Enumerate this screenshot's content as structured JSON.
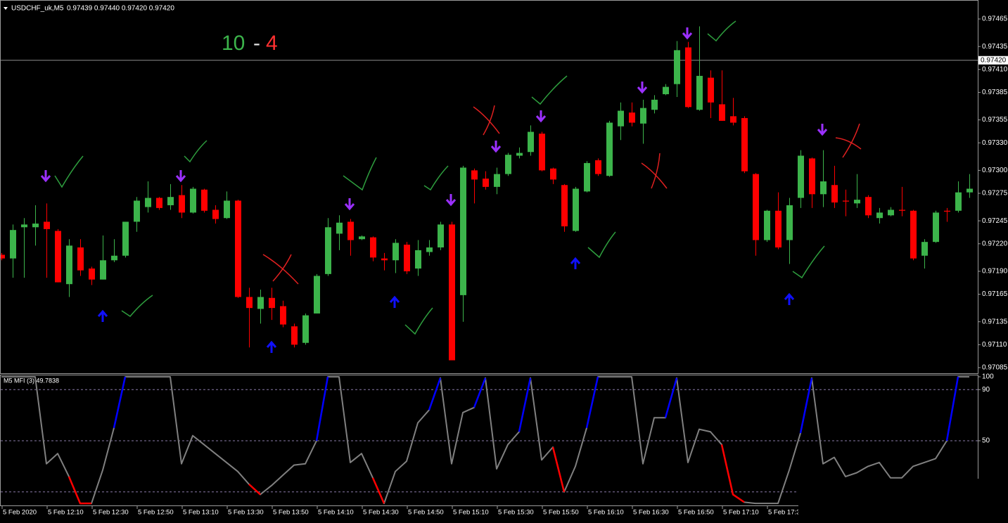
{
  "chart_data": [
    {
      "type": "candlestick",
      "symbol": "USDCHF_uk,M5",
      "quote": "0.97439 0.97440 0.97420 0.97420",
      "score": {
        "wins": "10",
        "separator": "-",
        "losses": "4"
      },
      "up_color": "#3cb44b",
      "down_color": "#ff0000",
      "current_price": {
        "value": 0.9742,
        "label": "0.97420"
      },
      "ylim": [
        0.9708,
        0.97484
      ],
      "yticks": [
        0.97465,
        0.97435,
        {
          "value": 0.9741,
          "label": "0.97410"
        },
        0.97385,
        0.97355,
        {
          "value": 0.9733,
          "label": "0.97330"
        },
        {
          "value": 0.973,
          "label": "0.97300"
        },
        0.97275,
        0.97245,
        {
          "value": 0.9722,
          "label": "0.97220"
        },
        {
          "value": 0.9719,
          "label": "0.97190"
        },
        0.97165,
        0.97135,
        {
          "value": 0.9711,
          "label": "0.97110"
        },
        0.97085
      ],
      "time_labels": [
        "5 Feb 2020",
        "5 Feb 12:10",
        "5 Feb 12:30",
        "5 Feb 12:50",
        "5 Feb 13:10",
        "5 Feb 13:30",
        "5 Feb 13:50",
        "5 Feb 14:10",
        "5 Feb 14:30",
        "5 Feb 14:50",
        "5 Feb 15:10",
        "5 Feb 15:30",
        "5 Feb 15:50",
        "5 Feb 16:10",
        "5 Feb 16:30",
        "5 Feb 16:50",
        "5 Feb 17:10",
        "5 Feb 17:3"
      ],
      "ohlc": [
        [
          0.97208,
          0.9721,
          0.97202,
          0.97204
        ],
        [
          0.97204,
          0.97241,
          0.97183,
          0.97235
        ],
        [
          0.97238,
          0.97248,
          0.97183,
          0.97241
        ],
        [
          0.97238,
          0.97262,
          0.97218,
          0.97242
        ],
        [
          0.97244,
          0.97264,
          0.97183,
          0.97236
        ],
        [
          0.97234,
          0.97236,
          0.97178,
          0.97178
        ],
        [
          0.97176,
          0.97225,
          0.97162,
          0.97218
        ],
        [
          0.97216,
          0.97225,
          0.97185,
          0.97191
        ],
        [
          0.97193,
          0.97195,
          0.97175,
          0.97181
        ],
        [
          0.97181,
          0.97229,
          0.97181,
          0.97202
        ],
        [
          0.97202,
          0.97225,
          0.972,
          0.97207
        ],
        [
          0.97207,
          0.97244,
          0.97205,
          0.97244
        ],
        [
          0.97244,
          0.97271,
          0.97233,
          0.97267
        ],
        [
          0.9726,
          0.97288,
          0.97254,
          0.9727
        ],
        [
          0.9727,
          0.97271,
          0.97257,
          0.97259
        ],
        [
          0.97262,
          0.97285,
          0.97257,
          0.97271
        ],
        [
          0.97273,
          0.97284,
          0.97248,
          0.97254
        ],
        [
          0.97254,
          0.97282,
          0.97253,
          0.9728
        ],
        [
          0.97279,
          0.9728,
          0.97254,
          0.97256
        ],
        [
          0.97257,
          0.97262,
          0.97242,
          0.97247
        ],
        [
          0.97248,
          0.97277,
          0.97247,
          0.97267
        ],
        [
          0.97267,
          0.97268,
          0.97161,
          0.97162
        ],
        [
          0.97162,
          0.97172,
          0.97107,
          0.9715
        ],
        [
          0.97149,
          0.9717,
          0.97133,
          0.97162
        ],
        [
          0.97161,
          0.97172,
          0.97137,
          0.9715
        ],
        [
          0.97152,
          0.97158,
          0.97129,
          0.97132
        ],
        [
          0.9713,
          0.97133,
          0.97107,
          0.9711
        ],
        [
          0.97112,
          0.97144,
          0.9711,
          0.97142
        ],
        [
          0.97144,
          0.97187,
          0.97144,
          0.97185
        ],
        [
          0.97187,
          0.97248,
          0.97185,
          0.97238
        ],
        [
          0.97231,
          0.97251,
          0.97213,
          0.97243
        ],
        [
          0.97244,
          0.97247,
          0.97207,
          0.97224
        ],
        [
          0.97225,
          0.97229,
          0.97224,
          0.97228
        ],
        [
          0.97227,
          0.97228,
          0.97201,
          0.97205
        ],
        [
          0.97204,
          0.9721,
          0.97191,
          0.97202
        ],
        [
          0.97202,
          0.97225,
          0.97188,
          0.97221
        ],
        [
          0.97219,
          0.97222,
          0.97187,
          0.9719
        ],
        [
          0.97193,
          0.97224,
          0.97185,
          0.97213
        ],
        [
          0.97211,
          0.97224,
          0.97207,
          0.97216
        ],
        [
          0.97216,
          0.97244,
          0.97213,
          0.97241
        ],
        [
          0.97241,
          0.97244,
          0.97093,
          0.97093
        ],
        [
          0.97164,
          0.97305,
          0.97135,
          0.97303
        ],
        [
          0.973,
          0.97302,
          0.97264,
          0.9729
        ],
        [
          0.97291,
          0.97299,
          0.97279,
          0.97282
        ],
        [
          0.97282,
          0.97303,
          0.97274,
          0.97296
        ],
        [
          0.97296,
          0.97319,
          0.97294,
          0.97317
        ],
        [
          0.97316,
          0.97325,
          0.97313,
          0.97319
        ],
        [
          0.9732,
          0.97349,
          0.97316,
          0.97342
        ],
        [
          0.9734,
          0.97342,
          0.97299,
          0.973
        ],
        [
          0.97302,
          0.97303,
          0.97285,
          0.9729
        ],
        [
          0.97284,
          0.97285,
          0.97233,
          0.97239
        ],
        [
          0.97234,
          0.97282,
          0.97233,
          0.9728
        ],
        [
          0.97277,
          0.9731,
          0.97276,
          0.97308
        ],
        [
          0.97311,
          0.97313,
          0.97294,
          0.97296
        ],
        [
          0.97294,
          0.97354,
          0.97293,
          0.97352
        ],
        [
          0.97348,
          0.97374,
          0.97333,
          0.97365
        ],
        [
          0.97363,
          0.97374,
          0.97348,
          0.97352
        ],
        [
          0.97351,
          0.97377,
          0.97329,
          0.97368
        ],
        [
          0.97366,
          0.97382,
          0.97362,
          0.97377
        ],
        [
          0.97383,
          0.97394,
          0.97382,
          0.97391
        ],
        [
          0.97394,
          0.97441,
          0.9738,
          0.97431
        ],
        [
          0.97434,
          0.9744,
          0.97368,
          0.97369
        ],
        [
          0.97366,
          0.97457,
          0.97365,
          0.97403
        ],
        [
          0.97401,
          0.97409,
          0.97357,
          0.97374
        ],
        [
          0.97372,
          0.97409,
          0.97354,
          0.97354
        ],
        [
          0.97359,
          0.97379,
          0.97349,
          0.97352
        ],
        [
          0.97357,
          0.97359,
          0.97297,
          0.97299
        ],
        [
          0.97296,
          0.97297,
          0.97207,
          0.97224
        ],
        [
          0.97224,
          0.97257,
          0.97222,
          0.97256
        ],
        [
          0.97256,
          0.97276,
          0.97214,
          0.97216
        ],
        [
          0.97224,
          0.9727,
          0.97198,
          0.97262
        ],
        [
          0.9727,
          0.97322,
          0.97259,
          0.97316
        ],
        [
          0.97313,
          0.97314,
          0.97259,
          0.97274
        ],
        [
          0.97274,
          0.97322,
          0.9726,
          0.97288
        ],
        [
          0.97284,
          0.97305,
          0.97259,
          0.97265
        ],
        [
          0.97267,
          0.97279,
          0.9725,
          0.97266
        ],
        [
          0.97264,
          0.97296,
          0.97259,
          0.97268
        ],
        [
          0.97271,
          0.97273,
          0.97248,
          0.97251
        ],
        [
          0.97248,
          0.97259,
          0.97242,
          0.97254
        ],
        [
          0.97251,
          0.9726,
          0.9725,
          0.97257
        ],
        [
          0.97257,
          0.97282,
          0.9725,
          0.97256
        ],
        [
          0.97256,
          0.97257,
          0.97202,
          0.97204
        ],
        [
          0.97207,
          0.97225,
          0.97193,
          0.97222
        ],
        [
          0.97222,
          0.97256,
          0.97221,
          0.97254
        ],
        [
          0.97256,
          0.97259,
          0.97244,
          0.97255
        ],
        [
          0.97256,
          0.97288,
          0.97254,
          0.97276
        ],
        [
          0.97276,
          0.97296,
          0.9727,
          0.9728
        ]
      ]
    },
    {
      "type": "line",
      "title": "M5 MFI (3) 49.7838",
      "ylim": [
        0,
        100
      ],
      "yticks": [
        100,
        90,
        50
      ],
      "levels": [
        90,
        50,
        10
      ],
      "series": [
        {
          "color": "#808080",
          "values": [
            100,
            100,
            100,
            100,
            32,
            40,
            22,
            1,
            1,
            27,
            60,
            100,
            100,
            100,
            100,
            100,
            32,
            54,
            47,
            40,
            33,
            26,
            16,
            8,
            15,
            23,
            31,
            32,
            50,
            100,
            100,
            33,
            40,
            21,
            1,
            26,
            34,
            64,
            74,
            99,
            32,
            72,
            76,
            99,
            28,
            47,
            57,
            99,
            35,
            45,
            10,
            30,
            60,
            100,
            100,
            100,
            100,
            32,
            68,
            68,
            99,
            33,
            59,
            57,
            47,
            8,
            2,
            1,
            1,
            1,
            27,
            56,
            99,
            32,
            37,
            22,
            25,
            30,
            33,
            21,
            21,
            30,
            33,
            36,
            50,
            100,
            100
          ]
        },
        {
          "color": "#0000ff",
          "values": [
            null,
            null,
            null,
            null,
            null,
            null,
            null,
            null,
            null,
            null,
            60,
            100,
            null,
            null,
            null,
            null,
            null,
            null,
            null,
            null,
            null,
            null,
            null,
            null,
            null,
            null,
            null,
            null,
            50,
            100,
            null,
            null,
            null,
            null,
            null,
            null,
            null,
            null,
            74,
            99,
            null,
            null,
            76,
            99,
            null,
            null,
            57,
            99,
            null,
            null,
            null,
            null,
            60,
            100,
            null,
            null,
            null,
            null,
            null,
            68,
            99,
            null,
            null,
            null,
            null,
            null,
            null,
            null,
            null,
            null,
            null,
            56,
            99,
            null,
            null,
            null,
            null,
            null,
            null,
            null,
            null,
            null,
            null,
            null,
            50,
            100,
            null
          ]
        },
        {
          "color": "#ff0000",
          "values": [
            null,
            null,
            null,
            null,
            null,
            null,
            22,
            1,
            1,
            null,
            null,
            null,
            null,
            null,
            null,
            null,
            null,
            null,
            null,
            null,
            null,
            null,
            16,
            8,
            null,
            null,
            null,
            null,
            null,
            null,
            null,
            null,
            null,
            21,
            1,
            null,
            null,
            null,
            null,
            null,
            null,
            null,
            null,
            null,
            null,
            null,
            null,
            null,
            null,
            45,
            10,
            null,
            null,
            null,
            null,
            null,
            null,
            null,
            null,
            null,
            null,
            null,
            null,
            null,
            47,
            8,
            2,
            null,
            null,
            null,
            null,
            null,
            null,
            null,
            null,
            null,
            null,
            null,
            null,
            null,
            null,
            null,
            null,
            null,
            null,
            null,
            null
          ]
        }
      ]
    }
  ]
}
